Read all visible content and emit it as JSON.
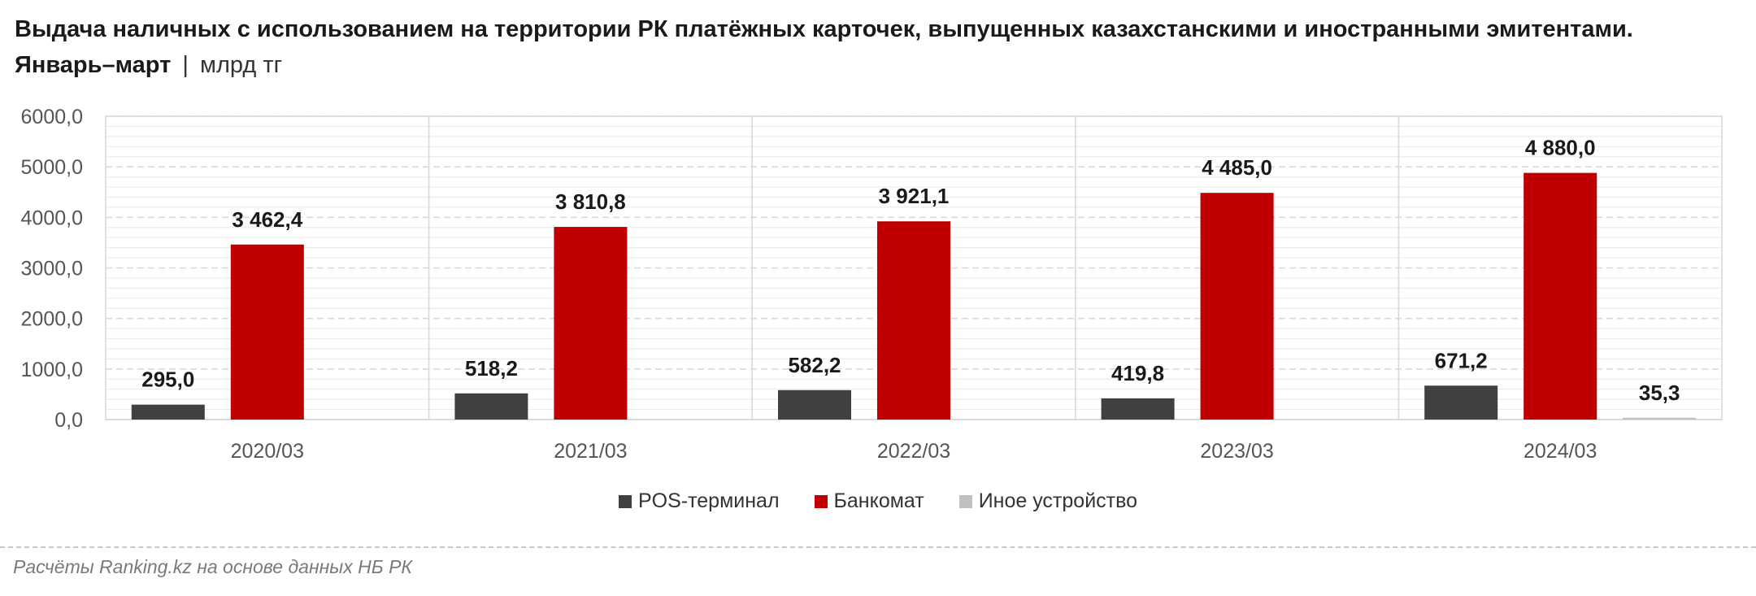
{
  "title": {
    "main": "Выдача наличных с использованием на территории РК платёжных карточек, выпущенных казахстанскими и иностранными эмитентами. Январь–март",
    "separator": "|",
    "unit": "млрд тг"
  },
  "source": "Расчёты Ranking.kz на основе данных НБ РК",
  "colors": {
    "pos": "#404040",
    "atm": "#c00000",
    "other": "#bfbfbf",
    "grid": "#d9d9d9",
    "axis_text": "#555555",
    "label_text": "#1a1a1a"
  },
  "chart_data": {
    "type": "bar",
    "title": "Выдача наличных с использованием на территории РК платёжных карточек, выпущенных казахстанскими и иностранными эмитентами. Январь–март",
    "ylabel": "млрд тг",
    "xlabel": "",
    "ylim": [
      0,
      6000
    ],
    "yticks": [
      "0,0",
      "1000,0",
      "2000,0",
      "3000,0",
      "4000,0",
      "5000,0",
      "6000,0"
    ],
    "grid": true,
    "legend_position": "bottom",
    "categories": [
      "2020/03",
      "2021/03",
      "2022/03",
      "2023/03",
      "2024/03"
    ],
    "series": [
      {
        "name": "POS-терминал",
        "color": "#404040",
        "values": [
          295.0,
          518.2,
          582.2,
          419.8,
          671.2
        ],
        "labels": [
          "295,0",
          "518,2",
          "582,2",
          "419,8",
          "671,2"
        ]
      },
      {
        "name": "Банкомат",
        "color": "#c00000",
        "values": [
          3462.4,
          3810.8,
          3921.1,
          4485.0,
          4880.0
        ],
        "labels": [
          "3 462,4",
          "3 810,8",
          "3 921,1",
          "4 485,0",
          "4 880,0"
        ]
      },
      {
        "name": "Иное устройство",
        "color": "#bfbfbf",
        "values": [
          null,
          null,
          null,
          null,
          35.3
        ],
        "labels": [
          null,
          null,
          null,
          null,
          "35,3"
        ]
      }
    ]
  }
}
